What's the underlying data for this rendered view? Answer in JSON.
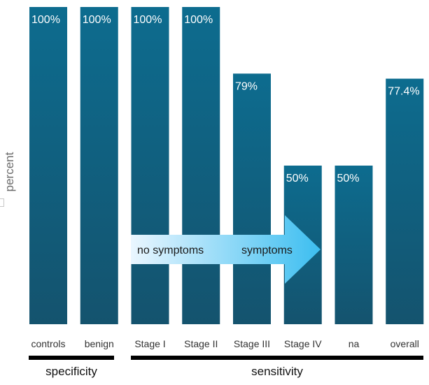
{
  "chart_data": {
    "type": "bar",
    "ylabel": "percent",
    "ylim": [
      0,
      100
    ],
    "categories": [
      "controls",
      "benign",
      "Stage I",
      "Stage II",
      "Stage III",
      "Stage IV",
      "na",
      "overall"
    ],
    "values": [
      100,
      100,
      100,
      100,
      79,
      50,
      50,
      77.4
    ],
    "data_labels": [
      "100%",
      "100%",
      "100%",
      "100%",
      "79%",
      "50%",
      "50%",
      "77.4%"
    ],
    "bar_color": "#0f5e80",
    "bar_gradient": [
      "#0d6c8f",
      "#14536e"
    ],
    "groups": [
      {
        "label": "specificity"
      },
      {
        "label": "sensitivity"
      }
    ],
    "annotation_arrow": {
      "left_text": "no symptoms",
      "right_text": "symptoms",
      "colors": [
        "#eaf6ff",
        "#3cbef0"
      ]
    }
  }
}
